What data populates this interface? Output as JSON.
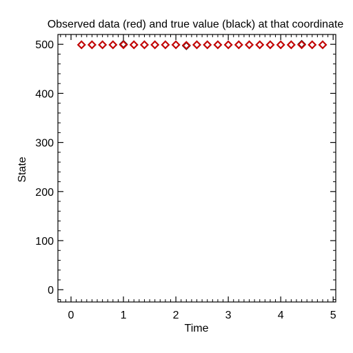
{
  "chart_data": {
    "type": "scatter",
    "title": "Observed data (red) and true value (black) at that coordinate",
    "xlabel": "Time",
    "ylabel": "State",
    "xlim": [
      -0.25,
      5.05
    ],
    "ylim": [
      -25,
      520
    ],
    "xticks": [
      0,
      1,
      2,
      3,
      4,
      5
    ],
    "xtick_labels": [
      "0",
      "1",
      "2",
      "3",
      "4",
      "5"
    ],
    "yticks": [
      0,
      100,
      200,
      300,
      400,
      500
    ],
    "ytick_labels": [
      "0",
      "100",
      "200",
      "300",
      "400",
      "500"
    ],
    "grid": false,
    "marker": "diamond-open",
    "series": [
      {
        "name": "true value (black)",
        "color": "#000000",
        "x": [
          0.2,
          0.4,
          0.6,
          0.8,
          1.0,
          1.2,
          1.4,
          1.6,
          1.8,
          2.0,
          2.2,
          2.4,
          2.6,
          2.8,
          3.0,
          3.2,
          3.4,
          3.6,
          3.8,
          4.0,
          4.2,
          4.4,
          4.6,
          4.8
        ],
        "y": [
          499,
          499,
          499,
          499,
          500,
          499,
          499,
          499,
          499,
          499,
          497,
          499,
          499,
          499,
          499,
          499,
          499,
          499,
          499,
          499,
          499,
          500,
          499,
          499
        ]
      },
      {
        "name": "Observed data (red)",
        "color": "#cc0000",
        "x": [
          0.2,
          0.4,
          0.6,
          0.8,
          1.0,
          1.2,
          1.4,
          1.6,
          1.8,
          2.0,
          2.2,
          2.4,
          2.6,
          2.8,
          3.0,
          3.2,
          3.4,
          3.6,
          3.8,
          4.0,
          4.2,
          4.4,
          4.6,
          4.8
        ],
        "y": [
          499,
          499,
          499,
          499,
          499,
          499,
          499,
          499,
          499,
          499,
          498,
          499,
          499,
          499,
          499,
          499,
          499,
          499,
          499,
          499,
          499,
          499,
          499,
          499
        ]
      }
    ]
  }
}
